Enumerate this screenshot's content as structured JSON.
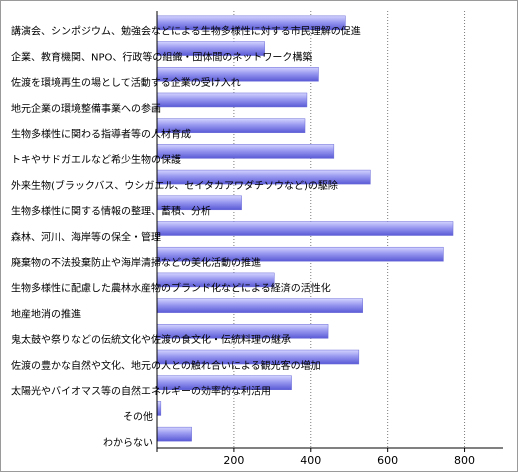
{
  "chart_data": {
    "type": "bar",
    "orientation": "horizontal",
    "categories": [
      "講演会、シンポジウム、勉強会などによる生物多様性に対する市民理解の促進",
      "企業、教育機関、NPO、行政等の組織・団体間のネットワーク構築",
      "佐渡を環境再生の場として活動する企業の受け入れ",
      "地元企業の環境整備事業への参画",
      "生物多様性に関わる指導者等の人材育成",
      "トキやサドガエルなど希少生物の保護",
      "外来生物(ブラックバス、ウシガエル、セイタカアワダチソウなど)の駆除",
      "生物多様性に関する情報の整理、蓄積、分析",
      "森林、河川、海岸等の保全・管理",
      "廃棄物の不法投棄防止や海岸清掃などの美化活動の推進",
      "生物多様性に配慮した農林水産物のブランド化などによる経済の活性化",
      "地産地消の推進",
      "鬼太鼓や祭りなどの伝統文化や佐渡の食文化・伝統料理の継承",
      "佐渡の豊かな自然や文化、地元の人との触れ合いによる観光客の増加",
      "太陽光やバイオマス等の自然エネルギーの効率的な利活用",
      "その他",
      "わからない"
    ],
    "values": [
      490,
      280,
      420,
      390,
      385,
      460,
      555,
      220,
      770,
      745,
      305,
      535,
      445,
      525,
      350,
      10,
      90
    ],
    "xlim": [
      0,
      900
    ],
    "xticks": [
      0,
      200,
      400,
      600,
      800
    ],
    "xtick_labels": [
      "200",
      "400",
      "600",
      "800"
    ],
    "grid": "vertical dotted",
    "legend": "none",
    "colors": {
      "bar_light": "#c8c8ff",
      "bar_mid": "#8a8aee",
      "bar_dark": "#5a5ad6",
      "grid": "#7a7a7a",
      "axis": "#000000"
    }
  }
}
